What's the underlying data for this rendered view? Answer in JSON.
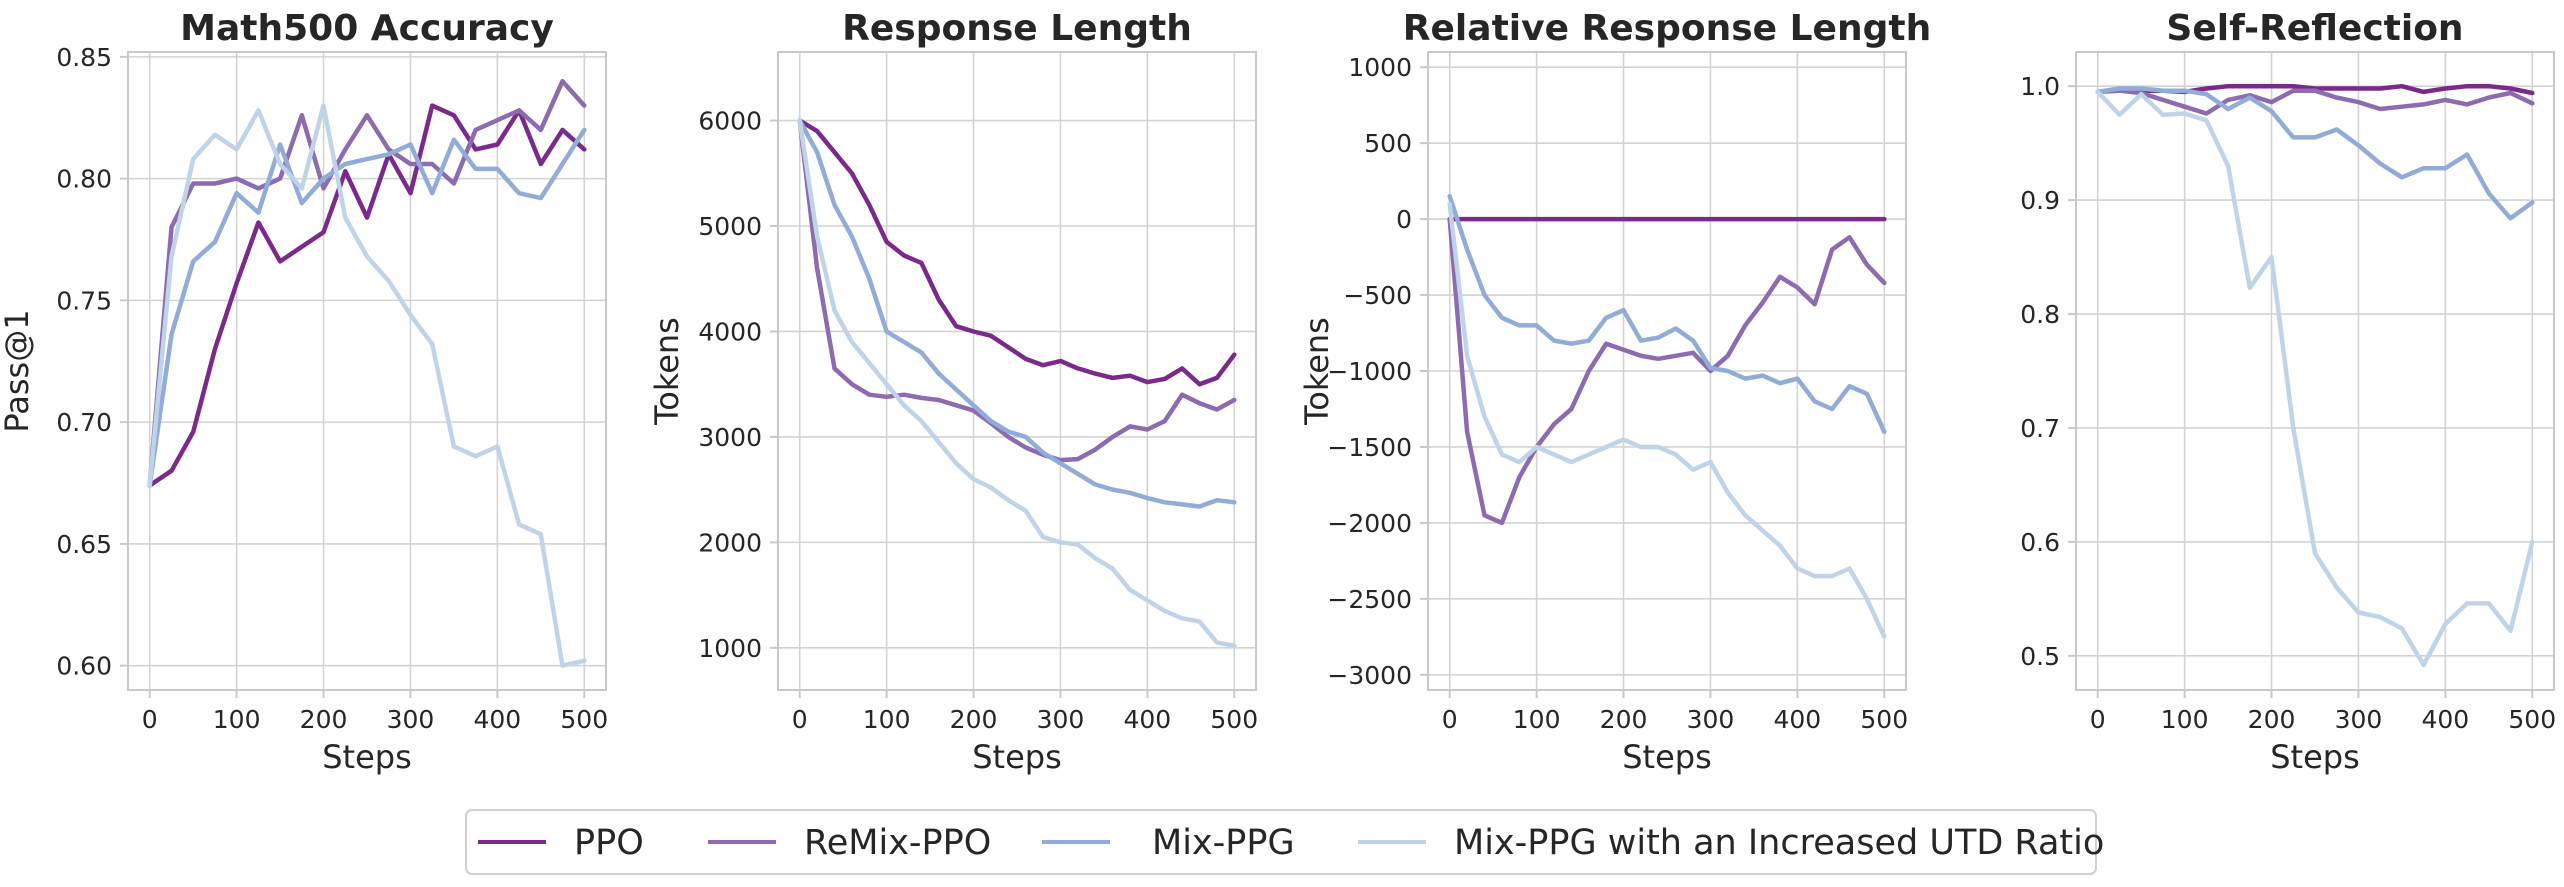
{
  "colors": {
    "PPO": "#7b2a8c",
    "ReMix-PPO": "#8c6bb1",
    "Mix-PPG": "#91acd6",
    "Mix-PPG with an Increased UTD Ratio": "#bfd4e8",
    "grid": "#d3d3d3",
    "frame": "#c9c9c9"
  },
  "legend": {
    "items": [
      "PPO",
      "ReMix-PPO",
      "Mix-PPG",
      "Mix-PPG with an Increased UTD Ratio"
    ]
  },
  "chart_data": [
    {
      "type": "line",
      "title": "Math500 Accuracy",
      "xlabel": "Steps",
      "ylabel": "Pass@1",
      "xlim": [
        -25,
        525
      ],
      "ylim": [
        0.59,
        0.852
      ],
      "xticks": [
        0,
        100,
        200,
        300,
        400,
        500
      ],
      "yticks": [
        0.6,
        0.65,
        0.7,
        0.75,
        0.8,
        0.85
      ],
      "ytick_labels": [
        "0.60",
        "0.65",
        "0.70",
        "0.75",
        "0.80",
        "0.85"
      ],
      "grid": true,
      "series": [
        {
          "name": "PPO",
          "x": [
            0,
            25,
            50,
            75,
            100,
            125,
            150,
            175,
            200,
            225,
            250,
            275,
            300,
            325,
            350,
            375,
            400,
            425,
            450,
            475,
            500
          ],
          "y": [
            0.674,
            0.68,
            0.696,
            0.73,
            0.757,
            0.782,
            0.766,
            0.772,
            0.778,
            0.803,
            0.784,
            0.81,
            0.794,
            0.83,
            0.826,
            0.812,
            0.814,
            0.828,
            0.806,
            0.82,
            0.812
          ]
        },
        {
          "name": "ReMix-PPO",
          "x": [
            0,
            25,
            50,
            75,
            100,
            125,
            150,
            175,
            200,
            225,
            250,
            275,
            300,
            325,
            350,
            375,
            400,
            425,
            450,
            475,
            500
          ],
          "y": [
            0.674,
            0.78,
            0.798,
            0.798,
            0.8,
            0.796,
            0.8,
            0.826,
            0.796,
            0.812,
            0.826,
            0.812,
            0.806,
            0.806,
            0.798,
            0.82,
            0.824,
            0.828,
            0.82,
            0.84,
            0.83
          ]
        },
        {
          "name": "Mix-PPG",
          "x": [
            0,
            25,
            50,
            75,
            100,
            125,
            150,
            175,
            200,
            225,
            250,
            275,
            300,
            325,
            350,
            375,
            400,
            425,
            450,
            475,
            500
          ],
          "y": [
            0.674,
            0.736,
            0.766,
            0.774,
            0.794,
            0.786,
            0.814,
            0.79,
            0.8,
            0.806,
            0.808,
            0.81,
            0.814,
            0.794,
            0.816,
            0.804,
            0.804,
            0.794,
            0.792,
            0.806,
            0.82
          ]
        },
        {
          "name": "Mix-PPG with an Increased UTD Ratio",
          "x": [
            0,
            25,
            50,
            75,
            100,
            125,
            150,
            175,
            200,
            225,
            250,
            275,
            300,
            325,
            350,
            375,
            400,
            425,
            450,
            475,
            500
          ],
          "y": [
            0.674,
            0.768,
            0.808,
            0.818,
            0.812,
            0.828,
            0.806,
            0.796,
            0.83,
            0.784,
            0.768,
            0.758,
            0.744,
            0.732,
            0.69,
            0.686,
            0.69,
            0.658,
            0.654,
            0.6,
            0.602
          ]
        }
      ]
    },
    {
      "type": "line",
      "title": "Response Length",
      "xlabel": "Steps",
      "ylabel": "Tokens",
      "xlim": [
        -25,
        525
      ],
      "ylim": [
        600,
        6650
      ],
      "xticks": [
        0,
        100,
        200,
        300,
        400,
        500
      ],
      "yticks": [
        1000,
        2000,
        3000,
        4000,
        5000,
        6000
      ],
      "ytick_labels": [
        "1000",
        "2000",
        "3000",
        "4000",
        "5000",
        "6000"
      ],
      "grid": true,
      "series": [
        {
          "name": "PPO",
          "x": [
            0,
            20,
            40,
            60,
            80,
            100,
            120,
            140,
            160,
            180,
            200,
            220,
            240,
            260,
            280,
            300,
            320,
            340,
            360,
            380,
            400,
            420,
            440,
            460,
            480,
            500
          ],
          "y": [
            6000,
            5900,
            5700,
            5500,
            5200,
            4850,
            4720,
            4650,
            4300,
            4050,
            4000,
            3960,
            3850,
            3740,
            3680,
            3720,
            3650,
            3600,
            3560,
            3580,
            3520,
            3550,
            3650,
            3500,
            3560,
            3780
          ]
        },
        {
          "name": "ReMix-PPO",
          "x": [
            0,
            20,
            40,
            60,
            80,
            100,
            120,
            140,
            160,
            180,
            200,
            220,
            240,
            260,
            280,
            300,
            320,
            340,
            360,
            380,
            400,
            420,
            440,
            460,
            480,
            500
          ],
          "y": [
            6000,
            4600,
            3650,
            3500,
            3400,
            3380,
            3400,
            3370,
            3350,
            3300,
            3250,
            3130,
            3000,
            2900,
            2830,
            2780,
            2790,
            2880,
            3000,
            3100,
            3070,
            3150,
            3400,
            3320,
            3260,
            3350
          ]
        },
        {
          "name": "Mix-PPG",
          "x": [
            0,
            20,
            40,
            60,
            80,
            100,
            120,
            140,
            160,
            180,
            200,
            220,
            240,
            260,
            280,
            300,
            320,
            340,
            360,
            380,
            400,
            420,
            440,
            460,
            480,
            500
          ],
          "y": [
            6000,
            5700,
            5200,
            4900,
            4500,
            4000,
            3900,
            3800,
            3600,
            3450,
            3300,
            3150,
            3050,
            3000,
            2850,
            2750,
            2650,
            2550,
            2500,
            2470,
            2420,
            2380,
            2360,
            2340,
            2400,
            2380
          ]
        },
        {
          "name": "Mix-PPG with an Increased UTD Ratio",
          "x": [
            0,
            20,
            40,
            60,
            80,
            100,
            120,
            140,
            160,
            180,
            200,
            220,
            240,
            260,
            280,
            300,
            320,
            340,
            360,
            380,
            400,
            420,
            440,
            460,
            480,
            500
          ],
          "y": [
            6000,
            4900,
            4200,
            3900,
            3700,
            3500,
            3300,
            3150,
            2950,
            2750,
            2600,
            2520,
            2400,
            2300,
            2050,
            2000,
            1980,
            1850,
            1750,
            1550,
            1450,
            1350,
            1280,
            1250,
            1050,
            1020
          ]
        }
      ]
    },
    {
      "type": "line",
      "title": "Relative Response Length",
      "xlabel": "Steps",
      "ylabel": "Tokens",
      "xlim": [
        -25,
        525
      ],
      "ylim": [
        -3100,
        1100
      ],
      "xticks": [
        0,
        100,
        200,
        300,
        400,
        500
      ],
      "yticks": [
        -3000,
        -2500,
        -2000,
        -1500,
        -1000,
        -500,
        0,
        500,
        1000
      ],
      "ytick_labels": [
        "−3000",
        "−2500",
        "−2000",
        "−1500",
        "−1000",
        "−500",
        "0",
        "500",
        "1000"
      ],
      "grid": true,
      "series": [
        {
          "name": "PPO",
          "x": [
            0,
            500
          ],
          "y": [
            0,
            0
          ]
        },
        {
          "name": "ReMix-PPO",
          "x": [
            0,
            20,
            40,
            60,
            80,
            100,
            120,
            140,
            160,
            180,
            200,
            220,
            240,
            260,
            280,
            300,
            320,
            340,
            360,
            380,
            400,
            420,
            440,
            460,
            480,
            500
          ],
          "y": [
            0,
            -1400,
            -1950,
            -2000,
            -1700,
            -1500,
            -1350,
            -1250,
            -1000,
            -820,
            -860,
            -900,
            -920,
            -900,
            -880,
            -1000,
            -900,
            -700,
            -550,
            -380,
            -450,
            -560,
            -200,
            -120,
            -300,
            -420
          ]
        },
        {
          "name": "Mix-PPG",
          "x": [
            0,
            20,
            40,
            60,
            80,
            100,
            120,
            140,
            160,
            180,
            200,
            220,
            240,
            260,
            280,
            300,
            320,
            340,
            360,
            380,
            400,
            420,
            440,
            460,
            480,
            500
          ],
          "y": [
            150,
            -200,
            -500,
            -650,
            -700,
            -700,
            -800,
            -820,
            -800,
            -650,
            -600,
            -800,
            -780,
            -720,
            -800,
            -980,
            -1000,
            -1050,
            -1030,
            -1080,
            -1050,
            -1200,
            -1250,
            -1100,
            -1150,
            -1400
          ]
        },
        {
          "name": "Mix-PPG with an Increased UTD Ratio",
          "x": [
            0,
            20,
            40,
            60,
            80,
            100,
            120,
            140,
            160,
            180,
            200,
            220,
            240,
            260,
            280,
            300,
            320,
            340,
            360,
            380,
            400,
            420,
            440,
            460,
            480,
            500
          ],
          "y": [
            100,
            -900,
            -1300,
            -1550,
            -1600,
            -1500,
            -1550,
            -1600,
            -1550,
            -1500,
            -1450,
            -1500,
            -1500,
            -1550,
            -1650,
            -1600,
            -1800,
            -1950,
            -2050,
            -2150,
            -2300,
            -2350,
            -2350,
            -2300,
            -2500,
            -2750
          ]
        }
      ]
    },
    {
      "type": "line",
      "title": "Self-Reflection",
      "xlabel": "Steps",
      "ylabel": "",
      "xlim": [
        -25,
        525
      ],
      "ylim": [
        0.47,
        1.03
      ],
      "xticks": [
        0,
        100,
        200,
        300,
        400,
        500
      ],
      "yticks": [
        0.5,
        0.6,
        0.7,
        0.8,
        0.9,
        1.0
      ],
      "ytick_labels": [
        "0.5",
        "0.6",
        "0.7",
        "0.8",
        "0.9",
        "1.0"
      ],
      "grid": true,
      "series": [
        {
          "name": "PPO",
          "x": [
            0,
            25,
            50,
            75,
            100,
            125,
            150,
            175,
            200,
            225,
            250,
            275,
            300,
            325,
            350,
            375,
            400,
            425,
            450,
            475,
            500
          ],
          "y": [
            0.995,
            0.997,
            0.996,
            0.996,
            0.995,
            0.998,
            1.0,
            1.0,
            1.0,
            1.0,
            0.998,
            0.998,
            0.998,
            0.998,
            1.0,
            0.995,
            0.998,
            1.0,
            1.0,
            0.998,
            0.994
          ]
        },
        {
          "name": "ReMix-PPO",
          "x": [
            0,
            25,
            50,
            75,
            100,
            125,
            150,
            175,
            200,
            225,
            250,
            275,
            300,
            325,
            350,
            375,
            400,
            425,
            450,
            475,
            500
          ],
          "y": [
            0.995,
            0.996,
            0.994,
            0.988,
            0.982,
            0.976,
            0.988,
            0.992,
            0.986,
            0.996,
            0.996,
            0.99,
            0.986,
            0.98,
            0.982,
            0.984,
            0.988,
            0.984,
            0.99,
            0.994,
            0.985
          ]
        },
        {
          "name": "Mix-PPG",
          "x": [
            0,
            25,
            50,
            75,
            100,
            125,
            150,
            175,
            200,
            225,
            250,
            275,
            300,
            325,
            350,
            375,
            400,
            425,
            450,
            475,
            500
          ],
          "y": [
            0.995,
            0.998,
            0.998,
            0.996,
            0.996,
            0.993,
            0.98,
            0.99,
            0.978,
            0.955,
            0.955,
            0.962,
            0.948,
            0.932,
            0.92,
            0.928,
            0.928,
            0.94,
            0.906,
            0.884,
            0.898
          ]
        },
        {
          "name": "Mix-PPG with an Increased UTD Ratio",
          "x": [
            0,
            25,
            50,
            75,
            100,
            125,
            150,
            175,
            200,
            225,
            250,
            275,
            300,
            325,
            350,
            375,
            400,
            425,
            450,
            475,
            500
          ],
          "y": [
            0.995,
            0.975,
            0.993,
            0.975,
            0.976,
            0.97,
            0.93,
            0.823,
            0.85,
            0.7,
            0.59,
            0.56,
            0.538,
            0.534,
            0.524,
            0.492,
            0.528,
            0.546,
            0.546,
            0.522,
            0.6
          ]
        }
      ]
    }
  ]
}
